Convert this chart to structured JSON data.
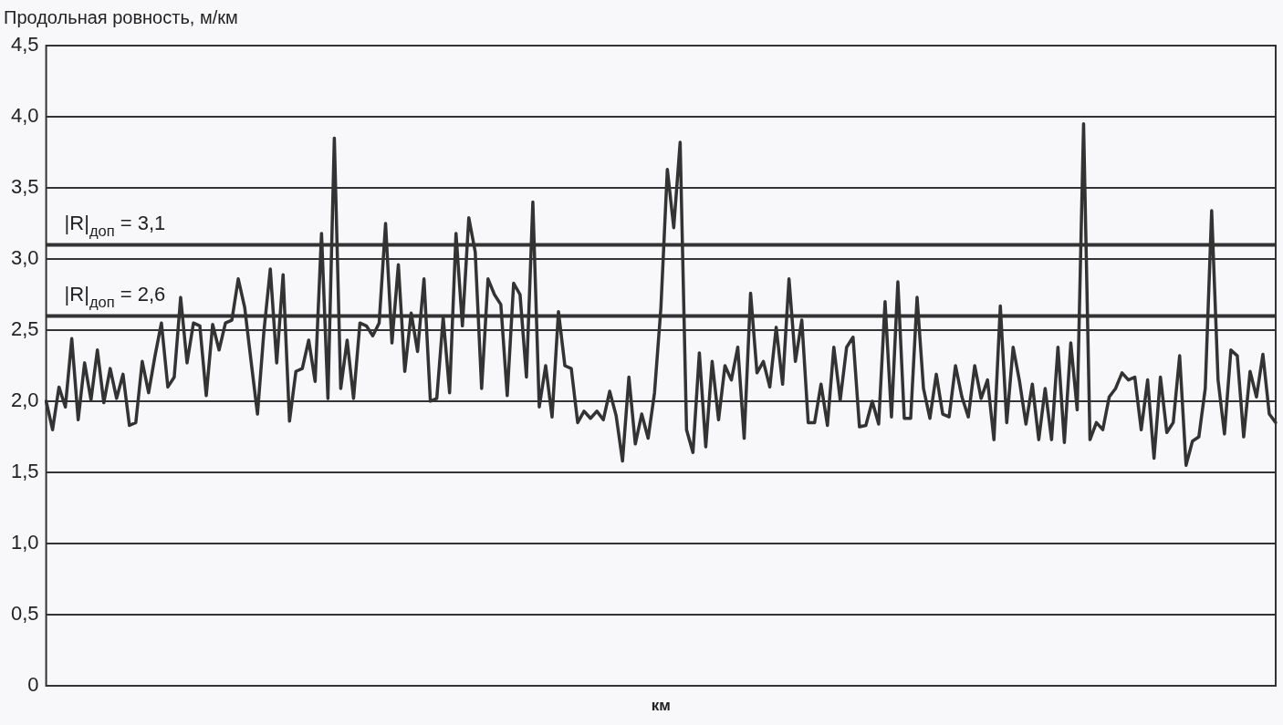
{
  "chart_data": {
    "type": "line",
    "ylabel": "Продольная ровность, м/км",
    "xlabel": "км",
    "categories": [
      null,
      null,
      null,
      null,
      null,
      null,
      null,
      null,
      null,
      null,
      null,
      null,
      null,
      null,
      null,
      null,
      null,
      null,
      null,
      null,
      null,
      null,
      null,
      null,
      null,
      null,
      null,
      null,
      null,
      null,
      null,
      null,
      null,
      null,
      null,
      null,
      null,
      null,
      null,
      null,
      null,
      null,
      null,
      null,
      null,
      null,
      null,
      null,
      null,
      null,
      null,
      null,
      null,
      null,
      null,
      null,
      null,
      null,
      null,
      null,
      null,
      null,
      null,
      null,
      null,
      null,
      null,
      null,
      null,
      null,
      null,
      null,
      null,
      null,
      null,
      null,
      null,
      null,
      null,
      null,
      null,
      null,
      null,
      null,
      null,
      null,
      null,
      null,
      null,
      null,
      null,
      null,
      null,
      null,
      null,
      null,
      null,
      null,
      null,
      null,
      null,
      null,
      null,
      null,
      null,
      null,
      null,
      null,
      null,
      null,
      null,
      null,
      null,
      null,
      null,
      null,
      null,
      null,
      null,
      null,
      null,
      null,
      null,
      null,
      null,
      null,
      null,
      null,
      null,
      null,
      null,
      null,
      null,
      null,
      null,
      null,
      null,
      null,
      null,
      null,
      null,
      null,
      null,
      null,
      null,
      null,
      null,
      null,
      null,
      null,
      null,
      null,
      null,
      null,
      null,
      null,
      null,
      null,
      null,
      null,
      null,
      null,
      null,
      null,
      null,
      null,
      null,
      null,
      null,
      null,
      null,
      null,
      null,
      null,
      null,
      null,
      null,
      null,
      null,
      null,
      null,
      null,
      null,
      null,
      null,
      null,
      null,
      null,
      null,
      null,
      null,
      null,
      null
    ],
    "series": [
      {
        "color": "#333333",
        "values": [
          2.0,
          1.8,
          2.1,
          1.96,
          2.44,
          1.87,
          2.27,
          2.01,
          2.36,
          1.99,
          2.23,
          2.02,
          2.19,
          1.83,
          1.85,
          2.28,
          2.06,
          2.32,
          2.55,
          2.1,
          2.17,
          2.73,
          2.27,
          2.55,
          2.53,
          2.04,
          2.54,
          2.36,
          2.55,
          2.57,
          2.86,
          2.66,
          2.28,
          1.91,
          2.49,
          2.93,
          2.27,
          2.89,
          1.86,
          2.21,
          2.23,
          2.43,
          2.14,
          3.18,
          2.02,
          3.85,
          2.09,
          2.43,
          2.02,
          2.55,
          2.53,
          2.46,
          2.55,
          3.25,
          2.41,
          2.96,
          2.21,
          2.62,
          2.35,
          2.86,
          2.0,
          2.02,
          2.59,
          2.06,
          3.18,
          2.53,
          3.29,
          3.05,
          2.09,
          2.86,
          2.75,
          2.68,
          2.04,
          2.83,
          2.75,
          2.17,
          3.4,
          1.96,
          2.25,
          1.89,
          2.63,
          2.25,
          2.23,
          1.85,
          1.93,
          1.88,
          1.93,
          1.87,
          2.07,
          1.9,
          1.58,
          2.17,
          1.7,
          1.91,
          1.74,
          2.06,
          2.66,
          3.63,
          3.22,
          3.82,
          1.8,
          1.64,
          2.34,
          1.68,
          2.28,
          1.87,
          2.25,
          2.15,
          2.38,
          1.74,
          2.76,
          2.2,
          2.28,
          2.1,
          2.52,
          2.12,
          2.86,
          2.28,
          2.57,
          1.85,
          1.85,
          2.12,
          1.83,
          2.38,
          2.01,
          2.38,
          2.45,
          1.82,
          1.83,
          2.0,
          1.84,
          2.7,
          1.89,
          2.84,
          1.88,
          1.88,
          2.73,
          2.09,
          1.88,
          2.19,
          1.91,
          1.89,
          2.25,
          2.03,
          1.89,
          2.25,
          2.02,
          2.15,
          1.73,
          2.67,
          1.85,
          2.38,
          2.14,
          1.84,
          2.12,
          1.73,
          2.09,
          1.73,
          2.38,
          1.71,
          2.41,
          1.94,
          3.95,
          1.73,
          1.85,
          1.8,
          2.03,
          2.09,
          2.2,
          2.15,
          2.17,
          1.8,
          2.15,
          1.6,
          2.17,
          1.78,
          1.85,
          2.32,
          1.55,
          1.72,
          1.75,
          2.09,
          3.34,
          2.15,
          1.77,
          2.36,
          2.32,
          1.75,
          2.21,
          2.03,
          2.33,
          1.91,
          1.85
        ]
      }
    ],
    "ylim": [
      0,
      4.5
    ],
    "yticks": [
      0,
      {
        "value": 0.5,
        "label": "0,5"
      },
      {
        "value": 1.0,
        "label": "1,0"
      },
      {
        "value": 1.5,
        "label": "1,5"
      },
      {
        "value": 2.0,
        "label": "2,0"
      },
      {
        "value": 2.5,
        "label": "2,5"
      },
      {
        "value": 3.0,
        "label": "3,0"
      },
      {
        "value": 3.5,
        "label": "3,5"
      },
      {
        "value": 4.0,
        "label": "4,0"
      },
      {
        "value": 4.5,
        "label": "4,5"
      }
    ],
    "tick_labels": "y",
    "grid": "y",
    "legend": false,
    "marker": "none",
    "line_style": "solid",
    "ref_lines": [
      {
        "axis": "y",
        "value": 3.1,
        "label": "|R|$_{доп}$ = 3,1",
        "color": "#333333"
      },
      {
        "axis": "y",
        "value": 2.6,
        "label": "|R|$_{доп}$ = 2,6",
        "color": "#333333"
      }
    ]
  }
}
